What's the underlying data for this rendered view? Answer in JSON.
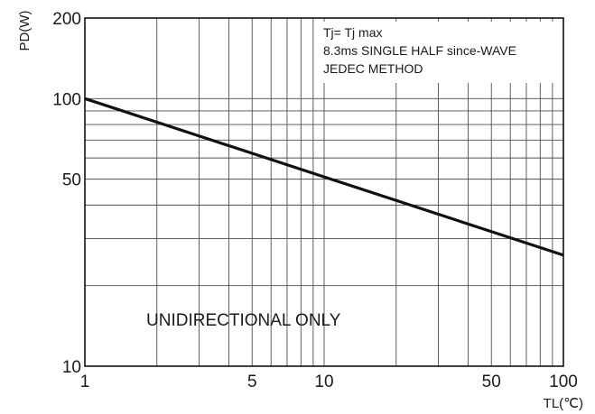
{
  "chart_data": {
    "type": "line",
    "xlabel": "TL(℃)",
    "ylabel": "PD(W)",
    "x_scale": "log",
    "y_scale": "log",
    "xlim": [
      1,
      100
    ],
    "ylim": [
      10,
      200
    ],
    "x_ticks": [
      1,
      5,
      10,
      50,
      100
    ],
    "x_tick_labels": [
      "1",
      "5",
      "10",
      "50",
      "100"
    ],
    "y_ticks": [
      10,
      50,
      100,
      200
    ],
    "y_tick_labels": [
      "10",
      "50",
      "100",
      "200"
    ],
    "grid": true,
    "series": [
      {
        "x": [
          1,
          100
        ],
        "y": [
          100,
          26
        ],
        "color": "#111111"
      }
    ],
    "annotations": [
      "Tj= Tj max",
      "8.3ms SINGLE HALF since-WAVE",
      "JEDEC METHOD",
      "UNIDIRECTIONAL ONLY"
    ]
  }
}
